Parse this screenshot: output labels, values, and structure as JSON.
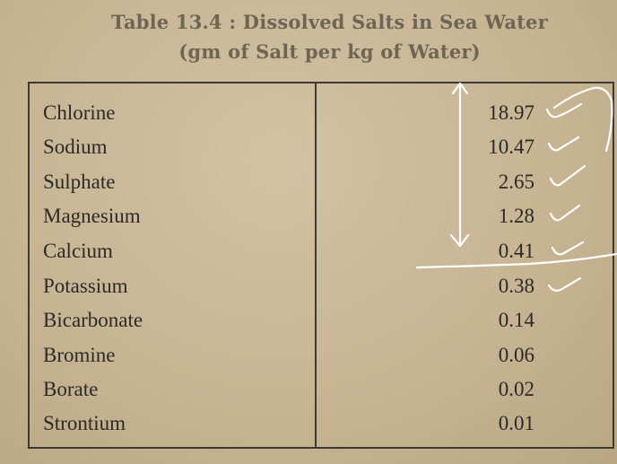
{
  "table": {
    "title_line1": "Table 13.4 : Dissolved Salts in Sea Water",
    "title_line2": "(gm of Salt per kg of Water)",
    "rows": [
      {
        "name": "Chlorine",
        "value": "18.97"
      },
      {
        "name": "Sodium",
        "value": "10.47"
      },
      {
        "name": "Sulphate",
        "value": "2.65"
      },
      {
        "name": "Magnesium",
        "value": "1.28"
      },
      {
        "name": "Calcium",
        "value": "0.41"
      },
      {
        "name": "Potassium",
        "value": "0.38"
      },
      {
        "name": "Bicarbonate",
        "value": "0.14"
      },
      {
        "name": "Bromine",
        "value": "0.06"
      },
      {
        "name": "Borate",
        "value": "0.02"
      },
      {
        "name": "Strontium",
        "value": "0.01"
      }
    ]
  },
  "annotations": {
    "ink_color": "#ffffff",
    "marks": [
      "double-arrow",
      "checkmark",
      "checkmark",
      "checkmark",
      "checkmark",
      "checkmark",
      "checkmark",
      "underline-stroke",
      "bracket-curve"
    ]
  }
}
